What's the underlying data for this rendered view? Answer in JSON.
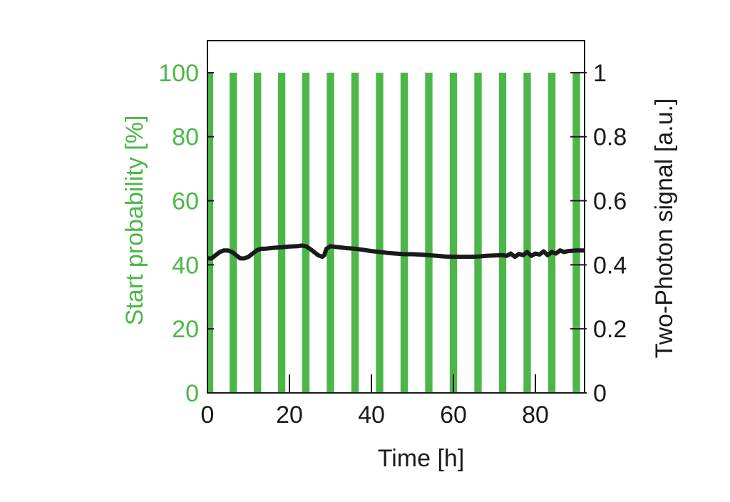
{
  "chart_data": {
    "type": "bar",
    "title": "",
    "xlabel": "Time [h]",
    "ylabel_left": "Start probability [%]",
    "ylabel_right": "Two-Photon signal [a.u.]",
    "xlim": [
      0,
      92
    ],
    "ylim_left": [
      0,
      110
    ],
    "ylim_right": [
      0,
      1.1
    ],
    "x_ticks": [
      0,
      20,
      40,
      60,
      80
    ],
    "y_left_ticks": [
      0,
      20,
      40,
      60,
      80,
      100
    ],
    "y_right_ticks": [
      "0",
      "0.2",
      "0.4",
      "0.6",
      "0.8",
      "1"
    ],
    "grid": false,
    "legend": "none",
    "colors": {
      "bars": "#4cb748",
      "line": "#1a1a1a",
      "left_axis": "#4cb748",
      "right_axis": "#1a1a1a"
    },
    "series": [
      {
        "type": "bar",
        "axis": "left",
        "x": [
          0.5,
          6.3,
          12.2,
          18.1,
          24.0,
          30.0,
          36.0,
          42.0,
          48.0,
          54.0,
          60.0,
          66.0,
          72.0,
          78.0,
          84.0,
          90.0
        ],
        "values": [
          100,
          100,
          100,
          100,
          100,
          100,
          100,
          100,
          100,
          100,
          100,
          100,
          100,
          100,
          100,
          100
        ],
        "bar_width_h": 1.8
      },
      {
        "type": "line",
        "axis": "right",
        "x": [
          0,
          1,
          2,
          3,
          4,
          5,
          6,
          7,
          8,
          9,
          10,
          11,
          12,
          13,
          14,
          16,
          18,
          20,
          22,
          23,
          24,
          25,
          26,
          27,
          28,
          28.5,
          29,
          30,
          32,
          34,
          36,
          38,
          40,
          42,
          44,
          46,
          48,
          50,
          52,
          54,
          56,
          58,
          60,
          62,
          64,
          66,
          68,
          70,
          72,
          73,
          74,
          75,
          76,
          77,
          78,
          79,
          80,
          81,
          82,
          83,
          84,
          85,
          86,
          87,
          88,
          90,
          92
        ],
        "values": [
          0.42,
          0.42,
          0.43,
          0.44,
          0.445,
          0.445,
          0.44,
          0.43,
          0.42,
          0.42,
          0.425,
          0.435,
          0.445,
          0.45,
          0.45,
          0.453,
          0.455,
          0.457,
          0.458,
          0.46,
          0.458,
          0.45,
          0.44,
          0.43,
          0.425,
          0.43,
          0.45,
          0.458,
          0.455,
          0.452,
          0.45,
          0.447,
          0.443,
          0.44,
          0.437,
          0.435,
          0.433,
          0.433,
          0.432,
          0.43,
          0.428,
          0.426,
          0.425,
          0.425,
          0.425,
          0.426,
          0.428,
          0.429,
          0.43,
          0.428,
          0.435,
          0.425,
          0.434,
          0.43,
          0.44,
          0.428,
          0.435,
          0.432,
          0.442,
          0.43,
          0.44,
          0.435,
          0.445,
          0.44,
          0.443,
          0.445,
          0.445
        ]
      }
    ]
  }
}
